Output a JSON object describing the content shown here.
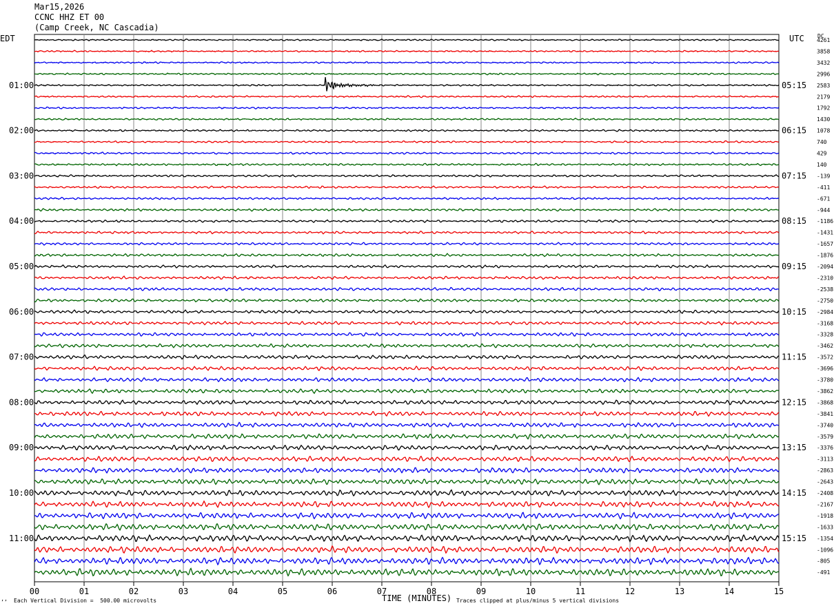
{
  "header": {
    "date": "Mar15,2026",
    "station": "CCNC HHZ ET 00",
    "location": "(Camp Creek, NC Cascadia)"
  },
  "labels": {
    "left_tz": "EDT",
    "right_tz": "UTC",
    "dc": "DC",
    "xlabel": "TIME (MINUTES)",
    "scale_note": "Each Vertical Division =  500.00 microvolts",
    "clip_note": "Traces clipped at plus/minus 5 vertical divisions",
    "corner_mark": "’’"
  },
  "chart_data": {
    "type": "line",
    "title": "CCNC HHZ ET 00",
    "xlabel": "TIME (MINUTES)",
    "ylabel": "",
    "xlim": [
      0,
      15
    ],
    "x_ticks": [
      "00",
      "01",
      "02",
      "03",
      "04",
      "05",
      "06",
      "07",
      "08",
      "09",
      "10",
      "11",
      "12",
      "13",
      "14",
      "15"
    ],
    "trace_count": 48,
    "traces_per_hour": 4,
    "trace_colors": [
      "#000000",
      "#ee0000",
      "#0000ee",
      "#006400"
    ],
    "left_hour_labels": [
      "01:00",
      "02:00",
      "03:00",
      "04:00",
      "05:00",
      "06:00",
      "07:00",
      "08:00",
      "09:00",
      "10:00",
      "11:00"
    ],
    "right_hour_labels": [
      "05:15",
      "06:15",
      "07:15",
      "08:15",
      "09:15",
      "10:15",
      "11:15",
      "12:15",
      "13:15",
      "14:15",
      "15:15"
    ],
    "dc_offsets": [
      "4261",
      "3858",
      "3432",
      "2996",
      "2583",
      "2179",
      "1792",
      "1430",
      "1078",
      "740",
      "429",
      "140",
      "-139",
      "-411",
      "-671",
      "-944",
      "-1186",
      "-1431",
      "-1657",
      "-1876",
      "-2094",
      "-2310",
      "-2538",
      "-2750",
      "-2984",
      "-3168",
      "-3328",
      "-3462",
      "-3572",
      "-3696",
      "-3780",
      "-3862",
      "-3868",
      "-3841",
      "-3740",
      "-3579",
      "-3376",
      "-3113",
      "-2863",
      "-2643",
      "-2408",
      "-2167",
      "-1918",
      "-1633",
      "-1354",
      "-1096",
      "-805",
      "-491"
    ],
    "event": {
      "trace_index": 4,
      "start_minute": 5.85,
      "duration_minutes": 1.1
    },
    "grid": true
  }
}
